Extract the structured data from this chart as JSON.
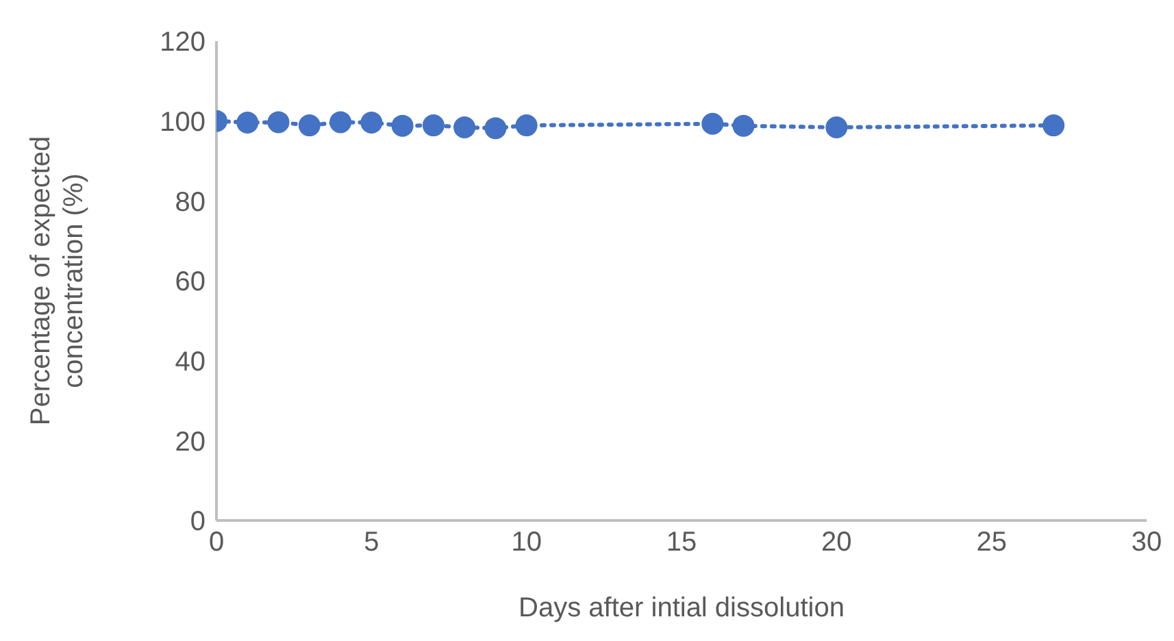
{
  "chart_data": {
    "type": "line",
    "xlabel": "Days after intial dissolution",
    "ylabel": "Percentage of expected concentration (%)",
    "x": [
      0,
      1,
      2,
      3,
      4,
      5,
      6,
      7,
      8,
      9,
      10,
      16,
      17,
      20,
      27
    ],
    "series": [
      {
        "color": "#4472c4",
        "values": [
          100,
          99.6,
          99.7,
          98.9,
          99.7,
          99.6,
          98.8,
          98.9,
          98.4,
          98.2,
          98.9,
          99.3,
          98.8,
          98.4,
          98.9
        ]
      }
    ],
    "xlim": [
      0,
      30
    ],
    "xticks": [
      0,
      5,
      10,
      15,
      20,
      25,
      30
    ],
    "ylim": [
      0,
      120
    ],
    "yticks": [
      0,
      20,
      40,
      60,
      80,
      100,
      120
    ],
    "grid": false,
    "legend": false,
    "marker": "circle",
    "line_style": "dotted"
  }
}
